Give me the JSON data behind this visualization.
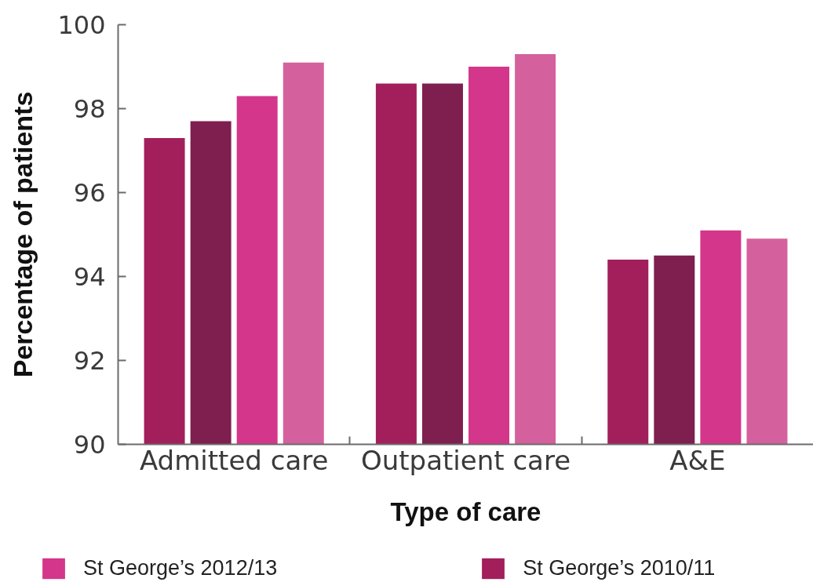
{
  "chart_data": {
    "type": "bar",
    "xlabel": "Type of care",
    "ylabel": "Percentage of patients",
    "categories": [
      "Admitted care",
      "Outpatient care",
      "A&E"
    ],
    "series": [
      {
        "name": "St George’s 2010/11",
        "color": "#a31f5b",
        "values": [
          97.3,
          98.6,
          94.4
        ]
      },
      {
        "color": "#7e1f4f",
        "values": [
          97.7,
          98.6,
          94.5
        ]
      },
      {
        "name": "St George’s 2012/13",
        "color": "#d4368b",
        "values": [
          98.3,
          99.0,
          95.1
        ]
      },
      {
        "color": "#d4619d",
        "values": [
          99.1,
          99.3,
          94.9
        ]
      }
    ],
    "ylim": [
      90,
      100
    ],
    "yticks": [
      90,
      92,
      94,
      96,
      98,
      100
    ],
    "legend": "bottom"
  }
}
